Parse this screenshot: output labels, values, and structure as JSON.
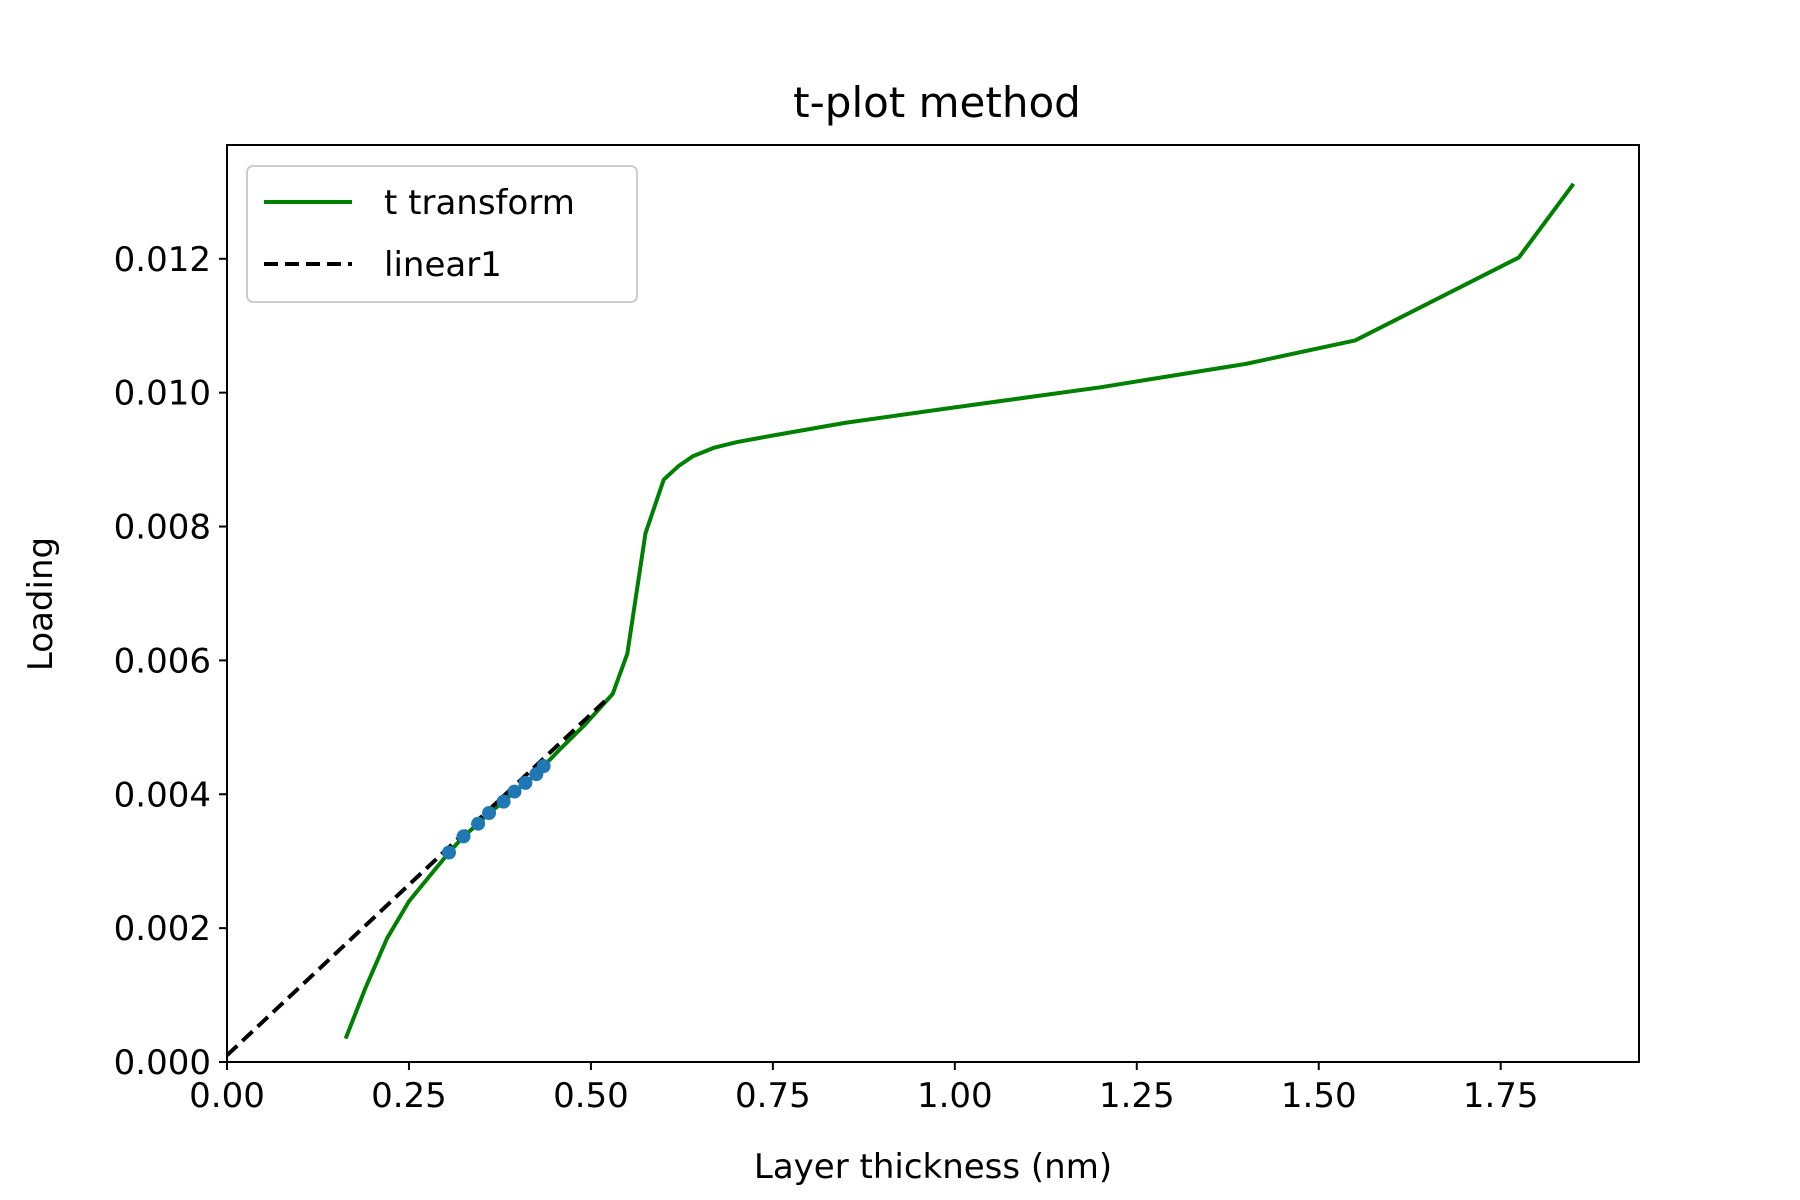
{
  "chart_data": {
    "type": "line",
    "title": "t-plot method",
    "xlabel": "Layer thickness (nm)",
    "ylabel": "Loading",
    "xlim": [
      0.0,
      1.94
    ],
    "ylim": [
      0.0,
      0.0137
    ],
    "x_ticks": [
      0.0,
      0.25,
      0.5,
      0.75,
      1.0,
      1.25,
      1.5,
      1.75
    ],
    "x_tick_labels": [
      "0.00",
      "0.25",
      "0.50",
      "0.75",
      "1.00",
      "1.25",
      "1.50",
      "1.75"
    ],
    "y_ticks": [
      0.0,
      0.002,
      0.004,
      0.006,
      0.008,
      0.01,
      0.012
    ],
    "y_tick_labels": [
      "0.000",
      "0.002",
      "0.004",
      "0.006",
      "0.008",
      "0.010",
      "0.012"
    ],
    "grid": false,
    "legend_position": "top-left",
    "series": [
      {
        "name": "t transform",
        "color": "#008000",
        "style": "solid",
        "x": [
          0.163,
          0.19,
          0.22,
          0.25,
          0.28,
          0.305,
          0.325,
          0.345,
          0.36,
          0.38,
          0.395,
          0.41,
          0.425,
          0.435,
          0.46,
          0.49,
          0.53,
          0.55,
          0.575,
          0.6,
          0.62,
          0.64,
          0.67,
          0.7,
          0.75,
          0.85,
          1.0,
          1.2,
          1.4,
          1.55,
          1.775,
          1.85
        ],
        "y": [
          0.00035,
          0.0011,
          0.00185,
          0.0024,
          0.0028,
          0.00313,
          0.00337,
          0.00356,
          0.00372,
          0.00389,
          0.00404,
          0.00417,
          0.0043,
          0.00442,
          0.0047,
          0.00502,
          0.0055,
          0.0061,
          0.0079,
          0.0087,
          0.0089,
          0.00905,
          0.00918,
          0.00926,
          0.00936,
          0.00955,
          0.00978,
          0.01008,
          0.01043,
          0.01078,
          0.01202,
          0.01312
        ]
      },
      {
        "name": "linear1",
        "color": "#000000",
        "style": "dashed",
        "x": [
          0.0,
          0.52
        ],
        "y": [
          0.0001,
          0.0054
        ]
      },
      {
        "name": "",
        "color": "#1f77b4",
        "style": "markers",
        "x": [
          0.305,
          0.325,
          0.345,
          0.36,
          0.38,
          0.395,
          0.41,
          0.425,
          0.435
        ],
        "y": [
          0.00313,
          0.00337,
          0.00356,
          0.00372,
          0.00389,
          0.00404,
          0.00417,
          0.0043,
          0.00442
        ]
      }
    ]
  }
}
